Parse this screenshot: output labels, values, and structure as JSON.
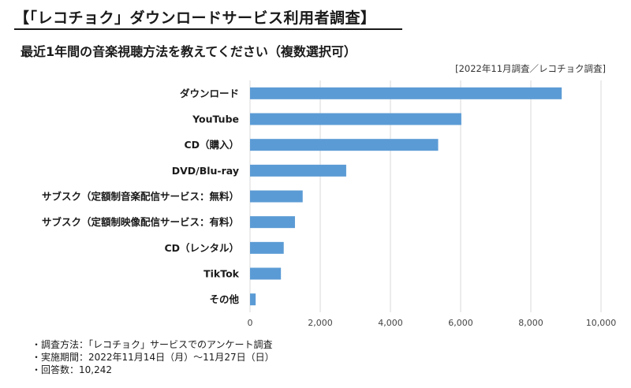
{
  "title": "【「レコチョク」ダウンロードサービス利用者調査】",
  "subtitle": "最近1年間の音楽視聴方法を教えてください（複数選択可）",
  "source": "[2022年11月調査／レコチョク調査]",
  "notes": [
    "・調査方法：「レコチョク」サービスでのアンケート調査",
    "・実施期間：2022年11月14日（月）～11月27日（日）",
    "・回答数：10,242"
  ],
  "colors": {
    "bar": "#5b9bd5",
    "grid": "#d9d9d9",
    "text": "#1a1a1a"
  },
  "chart_data": {
    "type": "bar",
    "orientation": "horizontal",
    "categories": [
      "ダウンロード",
      "YouTube",
      "CD（購入）",
      "DVD/Blu-ray",
      "サブスク（定額制音楽配信サービス：無料）",
      "サブスク（定額制映像配信サービス：有料）",
      "CD（レンタル）",
      "TikTok",
      "その他"
    ],
    "values": [
      8880,
      6020,
      5360,
      2740,
      1500,
      1280,
      960,
      880,
      160
    ],
    "xlim": [
      0,
      10000
    ],
    "xticks": [
      0,
      2000,
      4000,
      6000,
      8000,
      10000
    ],
    "xtick_labels": [
      "0",
      "2,000",
      "4,000",
      "6,000",
      "8,000",
      "10,000"
    ],
    "grid": true,
    "legend": false
  }
}
